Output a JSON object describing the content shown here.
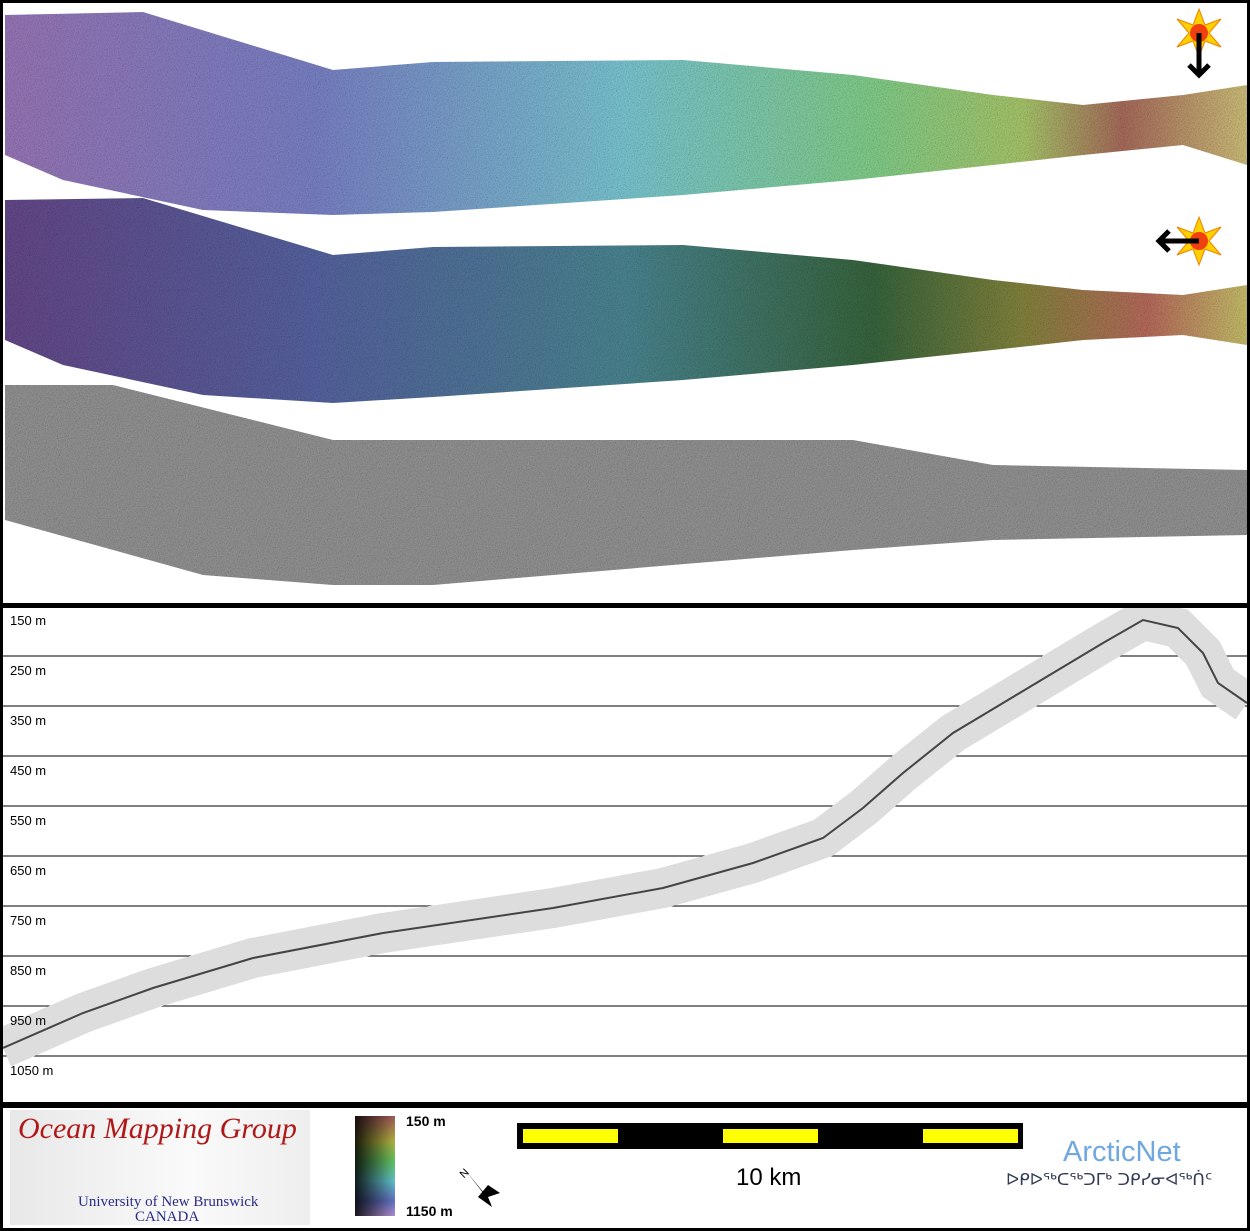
{
  "swath_panel": {
    "layers": [
      "sun-illuminated bathymetry (north)",
      "sun-illuminated bathymetry (west)",
      "backscatter"
    ],
    "sun_icons": [
      {
        "name": "sun-from-north-icon",
        "arrow": "down"
      },
      {
        "name": "sun-from-west-icon",
        "arrow": "left"
      }
    ],
    "colors": {
      "deep": "#a07cc0",
      "mid": "#7ecfd8",
      "shallow": "#b07060",
      "green": "#a8d870"
    }
  },
  "profile": {
    "depth_labels": [
      "150 m",
      "250 m",
      "350 m",
      "450 m",
      "550 m",
      "650 m",
      "750 m",
      "850 m",
      "950 m",
      "1050 m"
    ]
  },
  "legend": {
    "org_title": "Ocean Mapping Group",
    "org_university": "University of New Brunswick",
    "org_country": "CANADA",
    "colorbar_top": "150 m",
    "colorbar_bottom": "1150 m",
    "north_label": "N",
    "scale_label": "10 km",
    "arcticnet": "ArcticNet",
    "arcticnet_inuktitut": "ᐅᑭᐅᖅᑕᖅᑐᒥᒃ ᑐᑭᓯᓂᐊᖅᑏᑦ",
    "scale_colors": {
      "bar": "#000000",
      "segment": "#ffff00"
    }
  }
}
